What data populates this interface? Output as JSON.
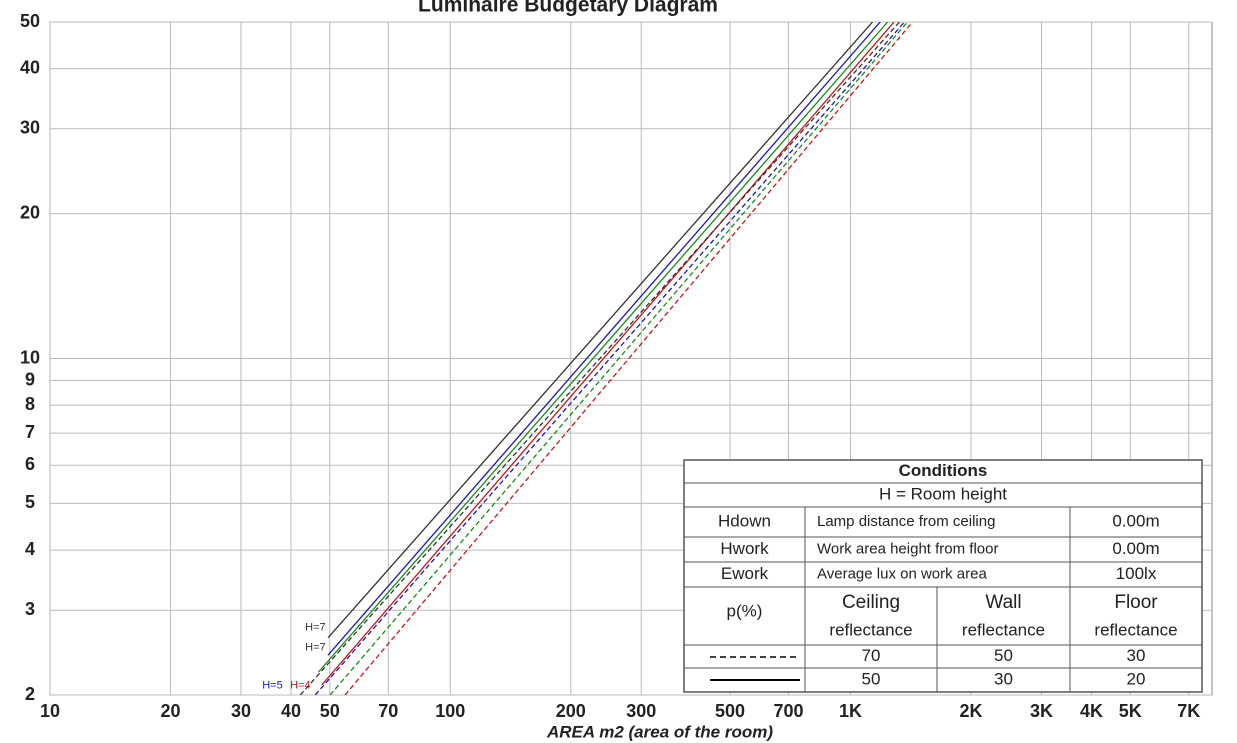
{
  "chart_data": {
    "type": "line",
    "title": "Luminaire Budgetary Diagram",
    "x_label": "AREA m2 (area of the room)",
    "xscale": "log",
    "yscale": "log",
    "grid": true,
    "xlim": [
      10,
      8000
    ],
    "ylim": [
      2,
      50
    ],
    "xticks": [
      10,
      20,
      30,
      40,
      50,
      70,
      100,
      200,
      300,
      500,
      700,
      {
        "value": 1000,
        "label": "1K"
      },
      {
        "value": 2000,
        "label": "2K"
      },
      {
        "value": 3000,
        "label": "3K"
      },
      {
        "value": 4000,
        "label": "4K"
      },
      {
        "value": 5000,
        "label": "5K"
      },
      {
        "value": 7000,
        "label": "7K"
      }
    ],
    "yticks": [
      2,
      3,
      4,
      5,
      6,
      7,
      8,
      9,
      10,
      20,
      30,
      40,
      50
    ],
    "series": [
      {
        "color": "#333333",
        "dash": false,
        "x": [
          49.5,
          1135
        ],
        "values": [
          2.63,
          50
        ]
      },
      {
        "color": "#1a1aaa",
        "dash": false,
        "x": [
          49.5,
          1186
        ],
        "values": [
          2.42,
          50
        ]
      },
      {
        "color": "#1a8a1a",
        "dash": false,
        "x": [
          46.8,
          1238
        ],
        "values": [
          2.23,
          50
        ]
      },
      {
        "color": "#c01a1a",
        "dash": false,
        "x": [
          47.8,
          1284
        ],
        "values": [
          2.1,
          50
        ]
      },
      {
        "color": "#333333",
        "dash": true,
        "x": [
          42.2,
          1325
        ],
        "values": [
          2,
          50
        ]
      },
      {
        "color": "#1a1aaa",
        "dash": true,
        "x": [
          46,
          1364
        ],
        "values": [
          2,
          50
        ]
      },
      {
        "color": "#1a8a1a",
        "dash": true,
        "x": [
          50.1,
          1388
        ],
        "values": [
          2,
          50
        ]
      },
      {
        "color": "#c01a1a",
        "dash": true,
        "x": [
          54.6,
          1429
        ],
        "values": [
          2,
          50
        ]
      }
    ],
    "annotations": [
      {
        "text": "H=7",
        "x": 43.4,
        "y": 2.76,
        "color": "#333333"
      },
      {
        "text": "H=7",
        "x": 43.4,
        "y": 2.51,
        "color": "#333333"
      },
      {
        "text": "H=5",
        "x": 33.9,
        "y": 2.09,
        "color": "#1a1aaa"
      },
      {
        "text": "H=4",
        "x": 39.8,
        "y": 2.09,
        "color": "#c01a1a"
      }
    ]
  },
  "table": {
    "title": "Conditions",
    "subtitle": "H = Room height",
    "rows": [
      [
        "Hdown",
        "Lamp distance from ceiling",
        "0.00m"
      ],
      [
        "Hwork",
        "Work area height from floor",
        "0.00m"
      ],
      [
        "Ework",
        "Average lux on work area",
        "100lx"
      ]
    ],
    "reflectance_label": "p(%)",
    "headers": [
      [
        "Ceiling",
        "reflectance"
      ],
      [
        "Wall",
        "reflectance"
      ],
      [
        "Floor",
        "reflectance"
      ]
    ],
    "values": [
      [
        70,
        50,
        30
      ],
      [
        50,
        30,
        20
      ]
    ]
  }
}
